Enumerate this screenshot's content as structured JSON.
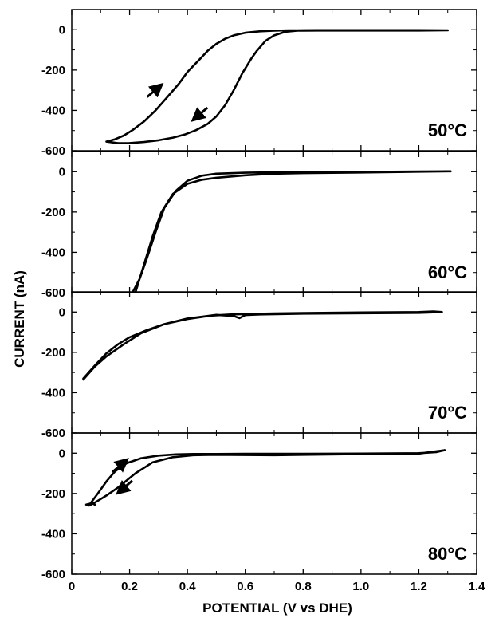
{
  "chart_data": {
    "type": "line",
    "xlabel": "POTENTIAL (V vs DHE)",
    "ylabel": "CURRENT (nA)",
    "xlim": [
      0,
      1.4
    ],
    "xticks": [
      "0",
      "0.2",
      "0.4",
      "0.6",
      "0.8",
      "1.0",
      "1.2",
      "1.4"
    ],
    "panels": [
      {
        "label": "50°C",
        "ylim": [
          -600,
          100
        ],
        "yticks": [
          "0",
          "-200",
          "-400",
          "-600"
        ],
        "direction_arrows": [
          {
            "direction": "up",
            "x": 0.28,
            "y": -310
          },
          {
            "direction": "down",
            "x": 0.45,
            "y": -410
          }
        ],
        "series": [
          {
            "x": [
              0.12,
              0.15,
              0.18,
              0.21,
              0.25,
              0.29,
              0.33,
              0.37,
              0.4,
              0.44,
              0.47,
              0.5,
              0.53,
              0.56,
              0.6,
              0.65,
              0.7,
              0.75,
              0.78,
              0.85,
              1.0,
              1.2,
              1.3,
              1.2,
              1.0,
              0.85,
              0.78,
              0.74,
              0.7,
              0.67,
              0.64,
              0.62,
              0.59,
              0.56,
              0.53,
              0.5,
              0.47,
              0.43,
              0.39,
              0.35,
              0.3,
              0.25,
              0.2,
              0.16,
              0.12
            ],
            "y": [
              -555,
              -543,
              -525,
              -498,
              -455,
              -400,
              -335,
              -268,
              -210,
              -150,
              -105,
              -70,
              -45,
              -28,
              -15,
              -8,
              -5,
              -3,
              -3,
              -2,
              -2,
              -2,
              -3,
              -4,
              -4,
              -4,
              -5,
              -10,
              -28,
              -55,
              -105,
              -145,
              -215,
              -300,
              -375,
              -430,
              -467,
              -498,
              -520,
              -535,
              -548,
              -557,
              -562,
              -563,
              -555
            ]
          }
        ]
      },
      {
        "label": "60°C",
        "ylim": [
          -600,
          100
        ],
        "yticks": [
          "0",
          "-200",
          "-400",
          "-600"
        ],
        "direction_arrows": [],
        "series": [
          {
            "x": [
              0.22,
              0.25,
              0.28,
              0.31,
              0.35,
              0.4,
              0.45,
              0.5,
              0.6,
              0.7,
              0.8,
              1.0,
              1.2,
              1.31,
              1.2,
              1.0,
              0.8,
              0.7,
              0.6,
              0.5,
              0.45,
              0.4,
              0.36,
              0.32,
              0.29,
              0.26,
              0.235,
              0.21
            ],
            "y": [
              -600,
              -460,
              -320,
              -200,
              -110,
              -60,
              -40,
              -30,
              -18,
              -10,
              -7,
              -4,
              0,
              2,
              1,
              -1,
              -2,
              -3,
              -5,
              -10,
              -20,
              -45,
              -95,
              -180,
              -300,
              -430,
              -530,
              -600
            ]
          }
        ]
      },
      {
        "label": "70°C",
        "ylim": [
          -600,
          100
        ],
        "yticks": [
          "0",
          "-200",
          "-400",
          "-600"
        ],
        "direction_arrows": [],
        "series": [
          {
            "x": [
              0.04,
              0.08,
              0.12,
              0.16,
              0.2,
              0.26,
              0.32,
              0.4,
              0.48,
              0.55,
              0.6,
              0.7,
              0.8,
              1.0,
              1.2,
              1.25,
              1.28,
              1.2,
              1.0,
              0.8,
              0.65,
              0.6,
              0.58,
              0.56,
              0.5,
              0.4,
              0.32,
              0.24,
              0.18,
              0.12,
              0.08,
              0.04
            ],
            "y": [
              -330,
              -265,
              -205,
              -160,
              -125,
              -90,
              -60,
              -35,
              -18,
              -12,
              -10,
              -7,
              -5,
              -2,
              0,
              3,
              0,
              -4,
              -6,
              -8,
              -12,
              -15,
              -30,
              -20,
              -14,
              -32,
              -60,
              -105,
              -160,
              -220,
              -270,
              -335
            ]
          }
        ]
      },
      {
        "label": "80°C",
        "ylim": [
          -600,
          100
        ],
        "yticks": [
          "0",
          "-200",
          "-400",
          "-600"
        ],
        "direction_arrows": [
          {
            "direction": "up",
            "x": 0.16,
            "y": -70
          },
          {
            "direction": "down",
            "x": 0.19,
            "y": -160
          }
        ],
        "series": [
          {
            "x": [
              0.06,
              0.09,
              0.12,
              0.15,
              0.19,
              0.24,
              0.3,
              0.36,
              0.42,
              0.5,
              0.6,
              0.8,
              1.0,
              1.2,
              1.26,
              1.29,
              1.2,
              1.0,
              0.8,
              0.7,
              0.6,
              0.5,
              0.42,
              0.35,
              0.28,
              0.22,
              0.16,
              0.12,
              0.08,
              0.06,
              0.05,
              0.07,
              0.08
            ],
            "y": [
              -258,
              -200,
              -140,
              -90,
              -50,
              -25,
              -12,
              -6,
              -4,
              -4,
              -3,
              -3,
              -2,
              0,
              5,
              15,
              -2,
              -5,
              -8,
              -10,
              -9,
              -8,
              -10,
              -20,
              -45,
              -100,
              -170,
              -210,
              -245,
              -260,
              -255,
              -248,
              -255
            ]
          }
        ]
      }
    ]
  }
}
